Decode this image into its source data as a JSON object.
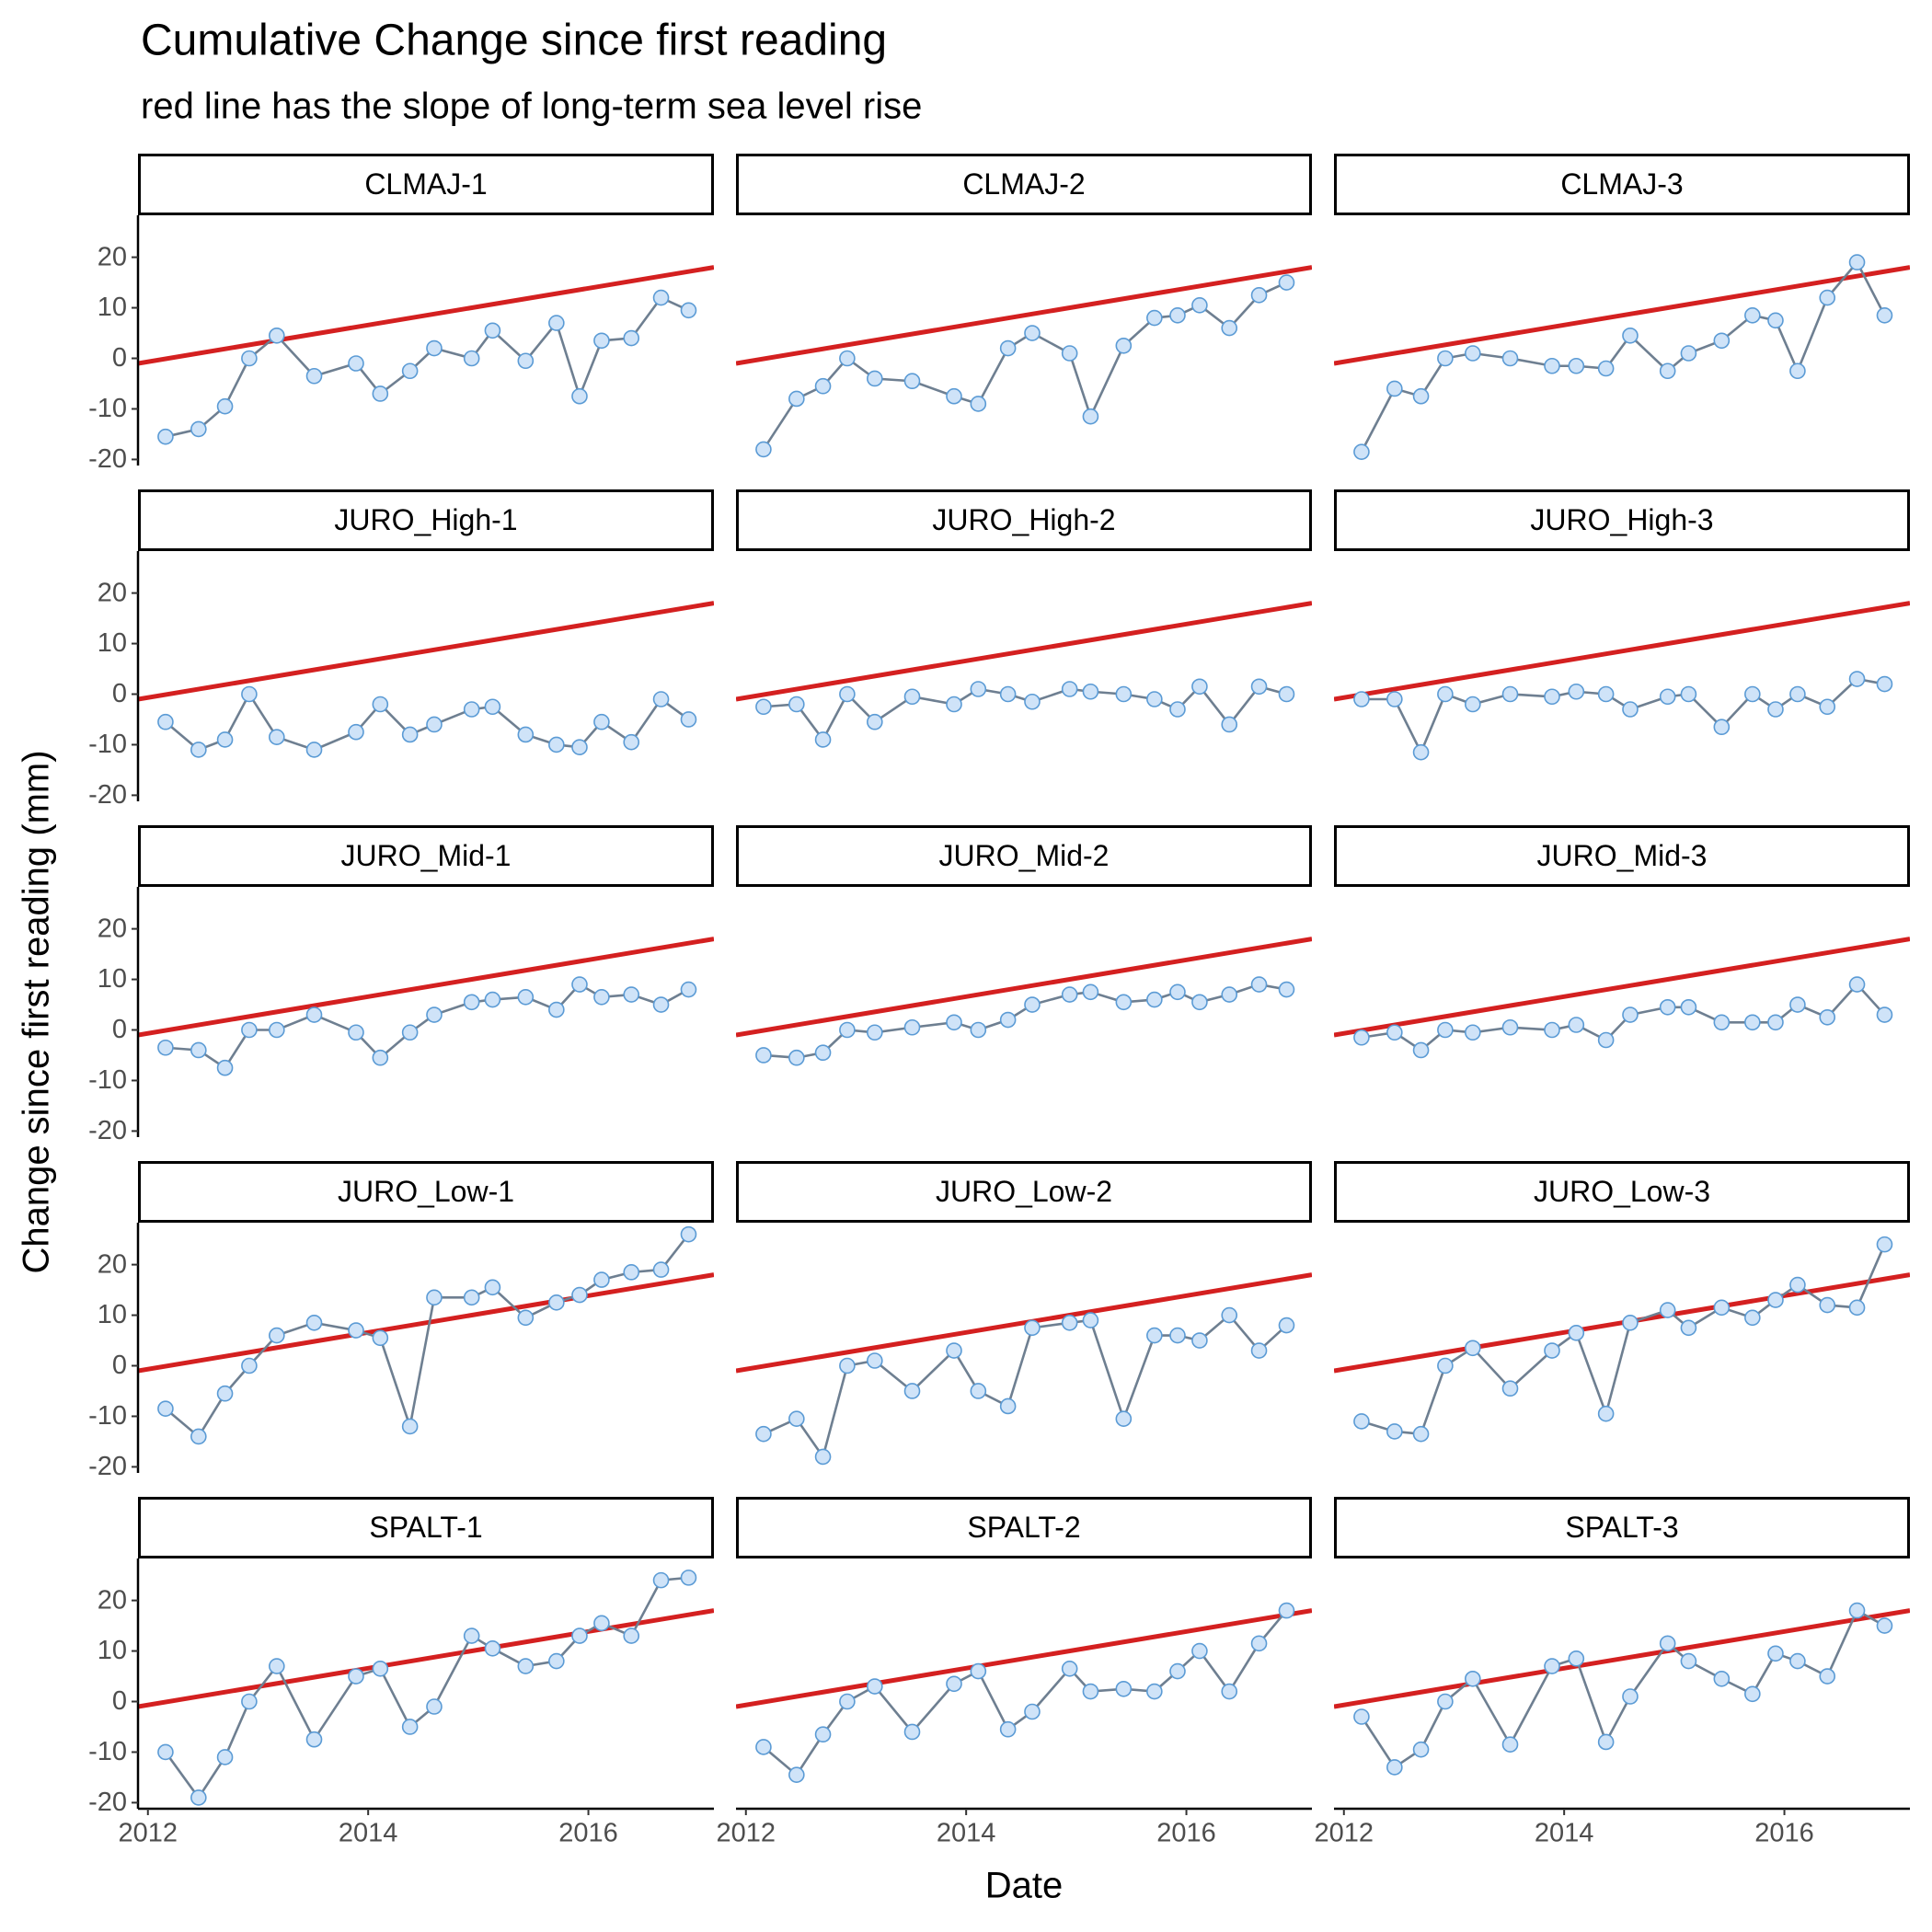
{
  "chart_data": {
    "type": "line",
    "title": "Cumulative Change since first reading",
    "subtitle": "red line has the slope of long-term sea level rise",
    "xlabel": "Date",
    "ylabel": "Change since first reading (mm)",
    "xlim": [
      2011.91,
      2017.14
    ],
    "ylim": [
      -21.2,
      28.3
    ],
    "xticks": [
      2012,
      2014,
      2016
    ],
    "yticks": [
      -20,
      -10,
      0,
      10,
      20
    ],
    "line_color": "#6e7f91",
    "point_fill": "#cfe3f8",
    "point_stroke": "#5b9bd5",
    "reference_line": {
      "color": "#d42020",
      "x": [
        2011.91,
        2017.14
      ],
      "values": [
        -1,
        18
      ]
    },
    "x": [
      2012.16,
      2012.46,
      2012.7,
      2012.92,
      2013.17,
      2013.51,
      2013.89,
      2014.11,
      2014.38,
      2014.6,
      2014.94,
      2015.13,
      2015.43,
      2015.71,
      2015.92,
      2016.12,
      2016.39,
      2016.66,
      2016.91
    ],
    "panels": [
      {
        "title": "CLMAJ-1",
        "values": [
          -15.5,
          -14,
          -9.5,
          0,
          4.5,
          -3.5,
          -1,
          -7,
          -2.5,
          2,
          0,
          5.5,
          -0.5,
          7,
          -7.5,
          3.5,
          4,
          12,
          9.5
        ]
      },
      {
        "title": "CLMAJ-2",
        "values": [
          -18,
          -8,
          -5.5,
          0,
          -4,
          -4.5,
          -7.5,
          -9,
          2,
          5,
          1,
          -11.5,
          2.5,
          8,
          8.5,
          10.5,
          6,
          12.5,
          15
        ]
      },
      {
        "title": "CLMAJ-3",
        "values": [
          -18.5,
          -6,
          -7.5,
          0,
          1,
          0,
          -1.5,
          -1.5,
          -2,
          4.5,
          -2.5,
          1,
          3.5,
          8.5,
          7.5,
          -2.5,
          12,
          19,
          8.5
        ]
      },
      {
        "title": "JURO_High-1",
        "values": [
          -5.5,
          -11,
          -9,
          0,
          -8.5,
          -11,
          -7.5,
          -2,
          -8,
          -6,
          -3,
          -2.5,
          -8,
          -10,
          -10.5,
          -5.5,
          -9.5,
          -1,
          -5
        ]
      },
      {
        "title": "JURO_High-2",
        "values": [
          -2.5,
          -2,
          -9,
          0,
          -5.5,
          -0.5,
          -2,
          1,
          0,
          -1.5,
          1,
          0.5,
          0,
          -1,
          -3,
          1.5,
          -6,
          1.5,
          0
        ]
      },
      {
        "title": "JURO_High-3",
        "values": [
          -1,
          -1,
          -11.5,
          0,
          -2,
          0,
          -0.5,
          0.5,
          0,
          -3,
          -0.5,
          0,
          -6.5,
          0,
          -3,
          0,
          -2.5,
          3,
          2
        ]
      },
      {
        "title": "JURO_Mid-1",
        "values": [
          -3.5,
          -4,
          -7.5,
          0,
          0,
          3,
          -0.5,
          -5.5,
          -0.5,
          3,
          5.5,
          6,
          6.5,
          4,
          9,
          6.5,
          7,
          5,
          8
        ]
      },
      {
        "title": "JURO_Mid-2",
        "values": [
          -5,
          -5.5,
          -4.5,
          0,
          -0.5,
          0.5,
          1.5,
          0,
          2,
          5,
          7,
          7.5,
          5.5,
          6,
          7.5,
          5.5,
          7,
          9,
          8
        ]
      },
      {
        "title": "JURO_Mid-3",
        "values": [
          -1.5,
          -0.5,
          -4,
          0,
          -0.5,
          0.5,
          0,
          1,
          -2,
          3,
          4.5,
          4.5,
          1.5,
          1.5,
          1.5,
          5,
          2.5,
          9,
          3
        ]
      },
      {
        "title": "JURO_Low-1",
        "values": [
          -8.5,
          -14,
          -5.5,
          0,
          6,
          8.5,
          7,
          5.5,
          -12,
          13.5,
          13.5,
          15.5,
          9.5,
          12.5,
          14,
          17,
          18.5,
          19,
          26
        ]
      },
      {
        "title": "JURO_Low-2",
        "values": [
          -13.5,
          -10.5,
          -18,
          0,
          1,
          -5,
          3,
          -5,
          -8,
          7.5,
          8.5,
          9,
          -10.5,
          6,
          6,
          5,
          10,
          3,
          8
        ]
      },
      {
        "title": "JURO_Low-3",
        "values": [
          -11,
          -13,
          -13.5,
          0,
          3.5,
          -4.5,
          3,
          6.5,
          -9.5,
          8.5,
          11,
          7.5,
          11.5,
          9.5,
          13,
          16,
          12,
          11.5,
          24
        ]
      },
      {
        "title": "SPALT-1",
        "values": [
          -10,
          -19,
          -11,
          0,
          7,
          -7.5,
          5,
          6.5,
          -5,
          -1,
          13,
          10.5,
          7,
          8,
          13,
          15.5,
          13,
          24,
          24.5
        ]
      },
      {
        "title": "SPALT-2",
        "values": [
          -9,
          -14.5,
          -6.5,
          0,
          3,
          -6,
          3.5,
          6,
          -5.5,
          -2,
          6.5,
          2,
          2.5,
          2,
          6,
          10,
          2,
          11.5,
          18
        ]
      },
      {
        "title": "SPALT-3",
        "values": [
          -3,
          -13,
          -9.5,
          0,
          4.5,
          -8.5,
          7,
          8.5,
          -8,
          1,
          11.5,
          8,
          4.5,
          1.5,
          9.5,
          8,
          5,
          18,
          15
        ]
      }
    ]
  }
}
